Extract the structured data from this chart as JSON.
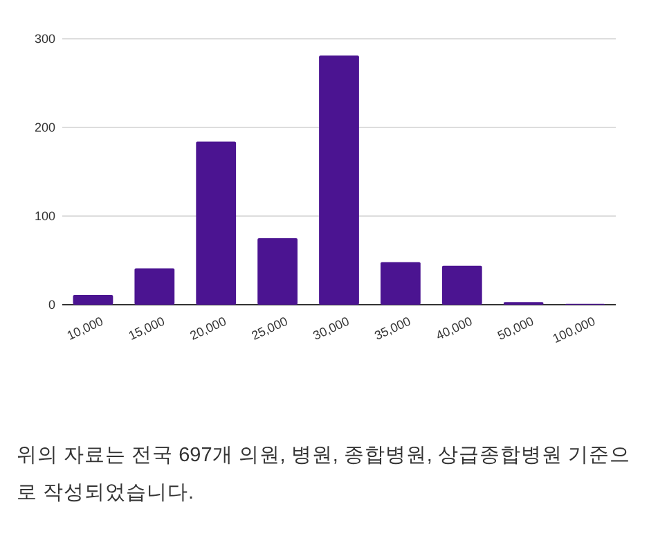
{
  "chart_data": {
    "type": "bar",
    "categories": [
      "10,000",
      "15,000",
      "20,000",
      "25,000",
      "30,000",
      "35,000",
      "40,000",
      "50,000",
      "100,000"
    ],
    "values": [
      11,
      41,
      184,
      75,
      281,
      48,
      44,
      3,
      1
    ],
    "color": "#4b1491",
    "ylim": [
      0,
      300
    ],
    "yticks": [
      0,
      100,
      200,
      300
    ],
    "grid": "y",
    "annotations": [
      "위의 자료는 전국 697개 의원, 병원, 종합병원, 상급종합병원 기준으로 작성되었습니다."
    ]
  }
}
